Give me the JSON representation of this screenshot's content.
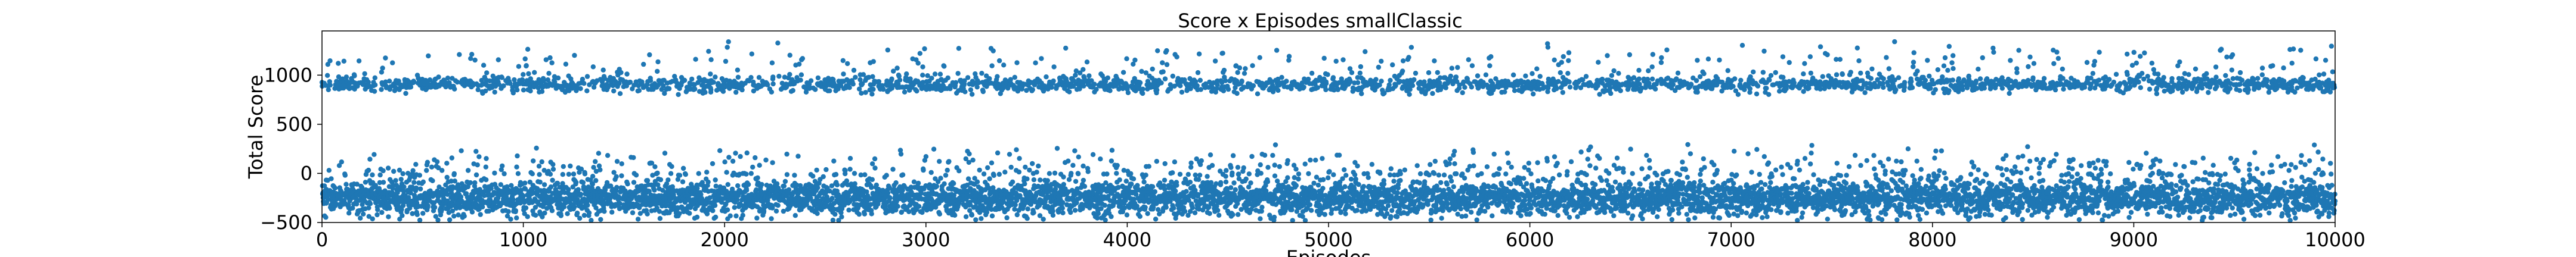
{
  "chart_data": {
    "type": "scatter",
    "title": "Score x Episodes smallClassic",
    "xlabel": "Episodes",
    "ylabel": "Total Score",
    "xlim": [
      0,
      10000
    ],
    "ylim": [
      -500,
      1450
    ],
    "x_ticks": [
      0,
      1000,
      2000,
      3000,
      4000,
      5000,
      6000,
      7000,
      8000,
      9000,
      10000
    ],
    "y_ticks": [
      -500,
      0,
      500,
      1000
    ],
    "grid": false,
    "legend": "none",
    "marker_color": "#1f77b4",
    "series": [
      {
        "x_range": [
          0,
          10000
        ],
        "point_count": 10000,
        "clusters": [
          {
            "share": 0.25,
            "center": 905,
            "spread": 40,
            "min": 800,
            "max": 1000
          },
          {
            "share": 0.03,
            "center": 1100,
            "spread": 110,
            "min": 1000,
            "max": 1380
          },
          {
            "share": 0.66,
            "center": -250,
            "spread": 90,
            "min": -480,
            "max": -20
          },
          {
            "share": 0.06,
            "center": 50,
            "spread": 100,
            "min": -20,
            "max": 330
          }
        ]
      }
    ]
  }
}
